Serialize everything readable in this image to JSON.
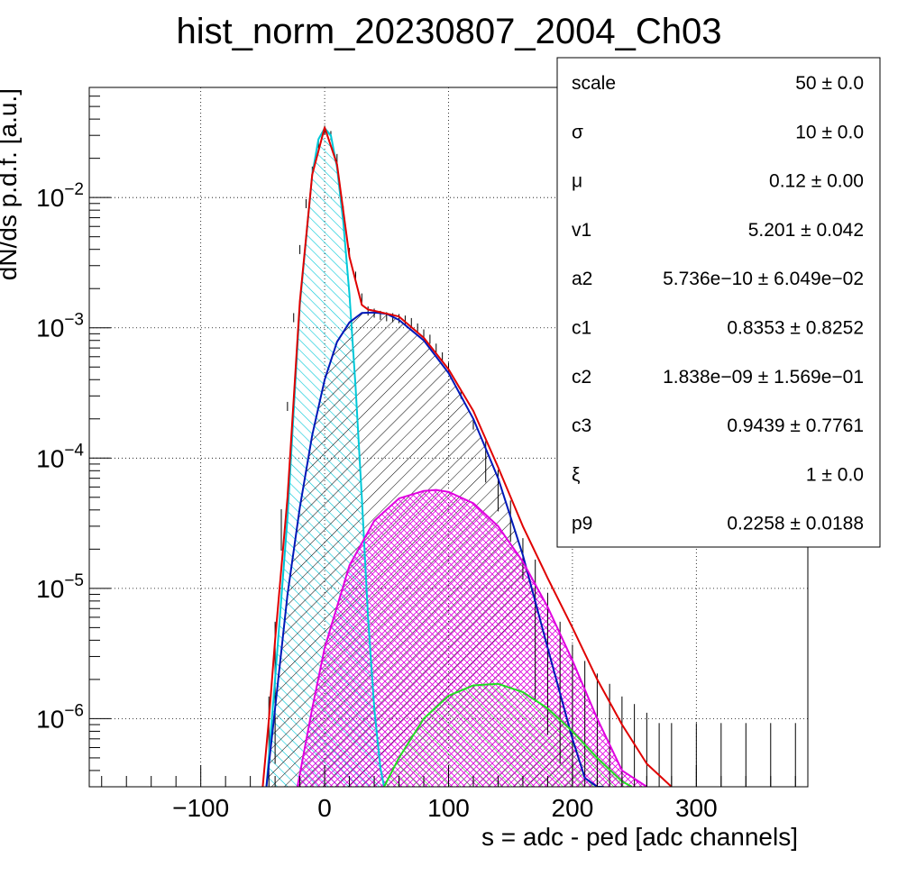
{
  "chart_data": {
    "type": "line",
    "title": "hist_norm_20230807_2004_Ch03",
    "xlabel": "s = adc - ped [adc channels]",
    "ylabel": "dN/ds p.d.f. [a.u.]",
    "xlim": [
      -190,
      390
    ],
    "ylim": [
      3e-07,
      0.07
    ],
    "yscale": "log",
    "grid": true,
    "x_ticks": [
      {
        "value": -100,
        "label": "−100"
      },
      {
        "value": 0,
        "label": "0"
      },
      {
        "value": 100,
        "label": "100"
      },
      {
        "value": 200,
        "label": "200"
      },
      {
        "value": 300,
        "label": "300"
      }
    ],
    "y_ticks": [
      {
        "value": 0.01,
        "base": "10",
        "exp": "−2"
      },
      {
        "value": 0.001,
        "base": "10",
        "exp": "−3"
      },
      {
        "value": 0.0001,
        "base": "10",
        "exp": "−4"
      },
      {
        "value": 1e-05,
        "base": "10",
        "exp": "−5"
      },
      {
        "value": 1e-06,
        "base": "10",
        "exp": "−6"
      }
    ],
    "series": [
      {
        "color": "#00c8d8",
        "hatch": "hatch-cyan",
        "x": [
          -47,
          -40,
          -30,
          -20,
          -10,
          -5,
          0,
          5,
          10,
          15,
          20,
          25,
          30,
          35,
          40,
          45,
          48
        ],
        "y": [
          3e-07,
          2e-06,
          3.5e-05,
          0.0015,
          0.015,
          0.028,
          0.034,
          0.03,
          0.017,
          0.0065,
          0.0018,
          0.00035,
          5e-05,
          6e-06,
          1.2e-06,
          4.2e-07,
          3e-07
        ]
      },
      {
        "color": "#0018b8",
        "hatch": "hatch-black",
        "x": [
          -47,
          -40,
          -30,
          -20,
          -10,
          0,
          10,
          20,
          30,
          40,
          50,
          60,
          80,
          100,
          120,
          140,
          160,
          180,
          200,
          210,
          220,
          225
        ],
        "y": [
          3e-07,
          1.2e-06,
          9e-06,
          4.2e-05,
          0.00015,
          0.0004,
          0.00078,
          0.0011,
          0.0013,
          0.00131,
          0.00128,
          0.00115,
          0.0008,
          0.00045,
          0.0002,
          7e-05,
          1.8e-05,
          3.5e-06,
          7e-07,
          3.5e-07,
          3e-07,
          3e-07
        ]
      },
      {
        "color": "#e000e0",
        "hatch": "hatch-magenta",
        "x": [
          -22,
          -10,
          0,
          20,
          40,
          60,
          80,
          90,
          100,
          120,
          140,
          160,
          180,
          200,
          220,
          240,
          260
        ],
        "y": [
          3e-07,
          1.2e-06,
          3.5e-06,
          1.5e-05,
          3.3e-05,
          4.9e-05,
          5.6e-05,
          5.7e-05,
          5.5e-05,
          4.5e-05,
          3e-05,
          1.6e-05,
          7.2e-06,
          2.8e-06,
          1e-06,
          4e-07,
          3e-07
        ]
      },
      {
        "color": "#22dd22",
        "hatch": "hatch-green",
        "x": [
          48,
          60,
          80,
          100,
          120,
          140,
          160,
          180,
          200,
          220,
          240,
          248
        ],
        "y": [
          3e-07,
          5e-07,
          1e-06,
          1.5e-06,
          1.8e-06,
          1.85e-06,
          1.6e-06,
          1.2e-06,
          8e-07,
          5e-07,
          3.3e-07,
          3e-07
        ]
      },
      {
        "color": "#e00000",
        "hatch": null,
        "x": [
          -50,
          -45,
          -40,
          -30,
          -20,
          -10,
          0,
          10,
          20,
          30,
          35,
          40,
          60,
          80,
          100,
          120,
          140,
          160,
          180,
          200,
          220,
          240,
          260,
          280
        ],
        "y": [
          3e-07,
          1e-06,
          4e-06,
          5e-05,
          0.0016,
          0.015,
          0.0345,
          0.018,
          0.0035,
          0.0015,
          0.00138,
          0.00135,
          0.00122,
          0.00084,
          0.00048,
          0.00023,
          8.5e-05,
          3e-05,
          1.2e-05,
          5e-06,
          2e-06,
          9e-07,
          4.5e-07,
          3e-07
        ]
      }
    ],
    "data_points": {
      "x": [
        -45,
        -40,
        -35,
        -30,
        -25,
        -20,
        -15,
        -10,
        -5,
        0,
        5,
        10,
        15,
        20,
        25,
        30,
        35,
        40,
        45,
        50,
        55,
        60,
        65,
        70,
        75,
        80,
        85,
        90,
        95,
        100,
        110,
        120,
        130,
        140,
        150,
        160,
        170,
        180,
        190,
        200,
        210,
        220,
        230,
        240,
        250,
        260,
        270,
        280,
        300,
        320,
        340,
        360,
        380
      ],
      "y": [
        8e-07,
        3e-06,
        3e-05,
        0.00025,
        0.0012,
        0.004,
        0.009,
        0.016,
        0.026,
        0.033,
        0.03,
        0.02,
        0.008,
        0.0038,
        0.0025,
        0.0017,
        0.00135,
        0.0013,
        0.00125,
        0.00122,
        0.0012,
        0.00118,
        0.00115,
        0.0011,
        0.001,
        0.0009,
        0.00082,
        0.0007,
        0.0006,
        0.0005,
        0.00031,
        0.00018,
        0.0001,
        6e-05,
        3.5e-05,
        1.8e-05,
        9e-06,
        5e-06,
        3e-06,
        2e-06,
        1.5e-06,
        1.2e-06,
        1e-06,
        8e-07,
        7e-07,
        6e-07,
        5e-07,
        5e-07,
        5e-07,
        5e-07,
        5e-07,
        5e-07,
        5e-07
      ],
      "color": "#000000"
    },
    "stats_box": {
      "placement": "top-right",
      "rows": [
        {
          "label": "scale",
          "value": "50 ± 0.0"
        },
        {
          "label": "σ",
          "value": "10 ± 0.0"
        },
        {
          "label": "μ",
          "value": "0.12 ± 0.00"
        },
        {
          "label": "v1",
          "value": "5.201 ± 0.042"
        },
        {
          "label": "a2",
          "value": "5.736e−10 ± 6.049e−02"
        },
        {
          "label": "c1",
          "value": "0.8353 ± 0.8252"
        },
        {
          "label": "c2",
          "value": "1.838e−09 ± 1.569e−01"
        },
        {
          "label": "c3",
          "value": "0.9439 ± 0.7761"
        },
        {
          "label": "ξ",
          "value": "1 ± 0.0"
        },
        {
          "label": "p9",
          "value": "0.2258 ± 0.0188"
        }
      ]
    }
  }
}
